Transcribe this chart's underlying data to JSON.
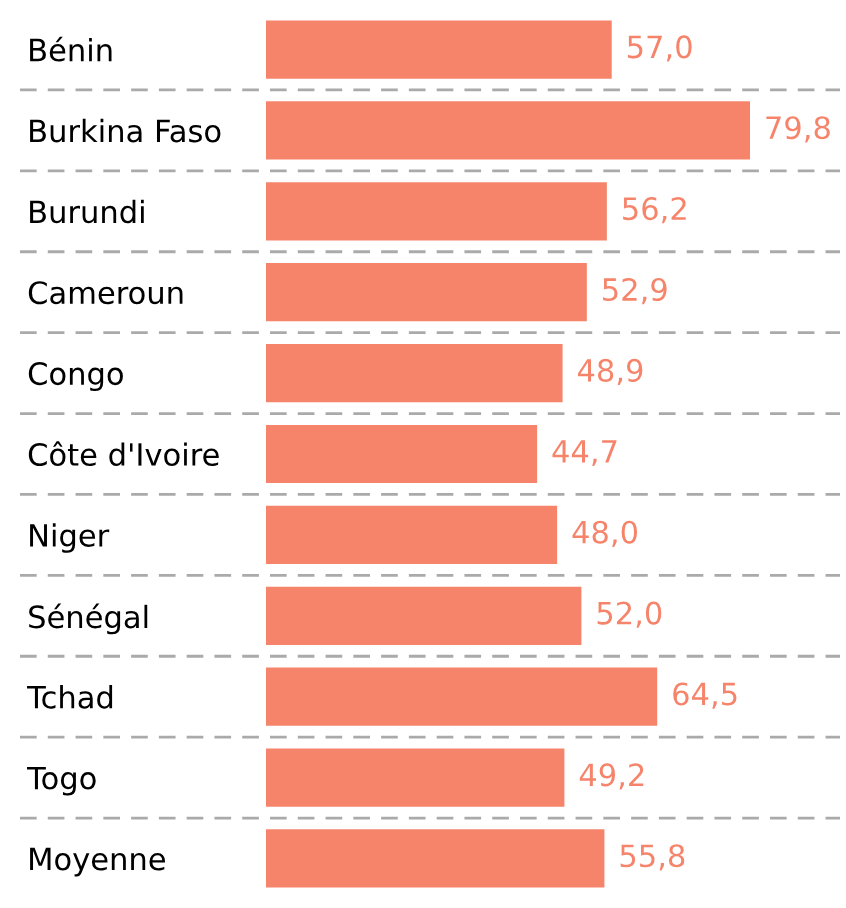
{
  "chart_data": {
    "type": "bar",
    "orientation": "horizontal",
    "categories": [
      "Bénin",
      "Burkina Faso",
      "Burundi",
      "Cameroun",
      "Congo",
      "Côte d'Ivoire",
      "Niger",
      "Sénégal",
      "Tchad",
      "Togo",
      "Moyenne"
    ],
    "values": [
      57.0,
      79.8,
      56.2,
      52.9,
      48.9,
      44.7,
      48.0,
      52.0,
      64.5,
      49.2,
      55.8
    ],
    "value_labels": [
      "57,0",
      "79,8",
      "56,2",
      "52,9",
      "48,9",
      "44,7",
      "48,0",
      "52,0",
      "64,5",
      "49,2",
      "55,8"
    ],
    "color": "#f5846b",
    "grid": "y"
  }
}
